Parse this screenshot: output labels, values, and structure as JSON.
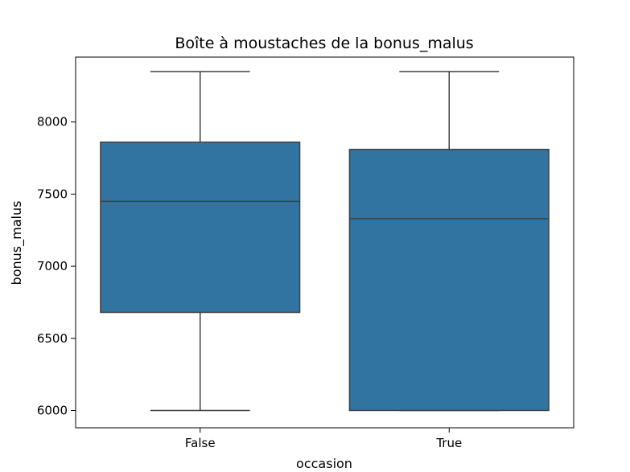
{
  "chart_data": {
    "type": "box",
    "title": "Boîte à moustaches de la bonus_malus",
    "xlabel": "occasion",
    "ylabel": "bonus_malus",
    "categories": [
      "False",
      "True"
    ],
    "boxes": [
      {
        "category": "False",
        "whisker_low": 6000,
        "q1": 6680,
        "median": 7450,
        "q3": 7860,
        "whisker_high": 8350
      },
      {
        "category": "True",
        "whisker_low": 6000,
        "q1": 6000,
        "median": 7330,
        "q3": 7810,
        "whisker_high": 8350
      }
    ],
    "yticks": [
      6000,
      6500,
      7000,
      7500,
      8000
    ],
    "ylim": [
      5880,
      8450
    ],
    "grid": false,
    "box_color": "#3274a1",
    "line_color": "#3f3f3f"
  }
}
